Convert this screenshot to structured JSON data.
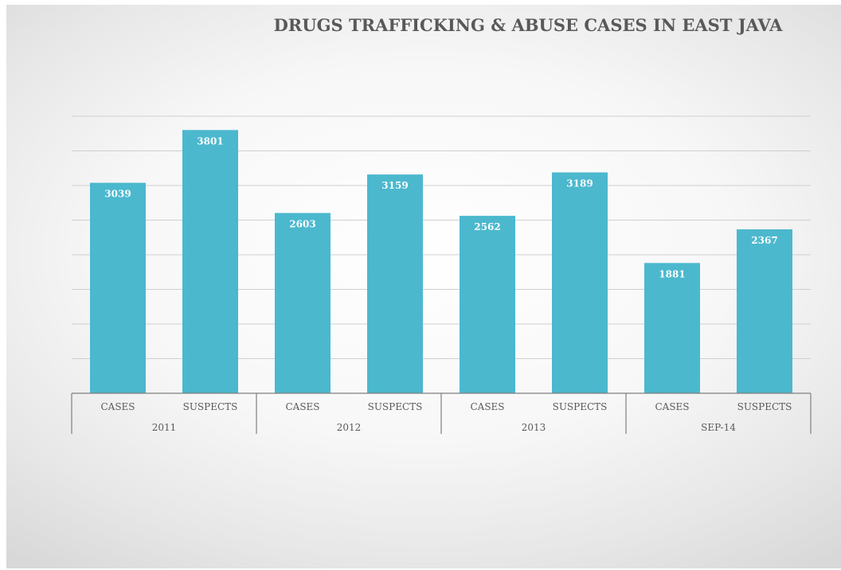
{
  "chart_data": {
    "type": "bar",
    "title": "DRUGS TRAFFICKING & ABUSE CASES IN EAST JAVA",
    "categories": [
      {
        "label": "CASES",
        "group": "2011"
      },
      {
        "label": "SUSPECTS",
        "group": "2011"
      },
      {
        "label": "CASES",
        "group": "2012"
      },
      {
        "label": "SUSPECTS",
        "group": "2012"
      },
      {
        "label": "CASES",
        "group": "2013"
      },
      {
        "label": "SUSPECTS",
        "group": "2013"
      },
      {
        "label": "CASES",
        "group": "SEP-14"
      },
      {
        "label": "SUSPECTS",
        "group": "SEP-14"
      }
    ],
    "groups": [
      "2011",
      "2012",
      "2013",
      "SEP-14"
    ],
    "values": [
      3039,
      3801,
      2603,
      3159,
      2562,
      3189,
      1881,
      2367
    ],
    "data_labels": [
      "3039",
      "3801",
      "2603",
      "3159",
      "2562",
      "3189",
      "1881",
      "2367"
    ],
    "ylim": [
      0,
      4000
    ],
    "y_gridline_step": 500,
    "y_axis_labels_shown": false,
    "grid": true,
    "legend": "none",
    "colors": {
      "bar": "#4BB8CE",
      "gridline": "#cfcfcf",
      "axis": "#7f7f7f",
      "title": "#595959",
      "category_text": "#595959",
      "value_text": "#ffffff"
    }
  }
}
